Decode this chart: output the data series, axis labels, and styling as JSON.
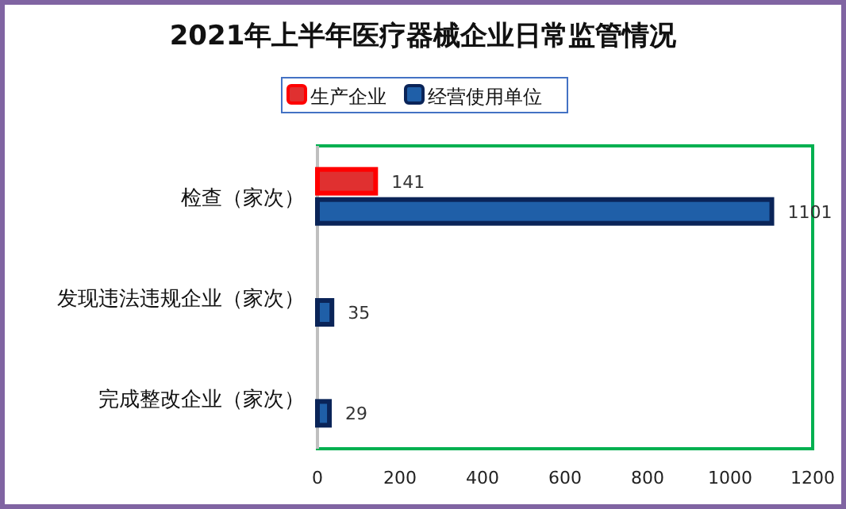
{
  "chart_data": {
    "type": "bar",
    "orientation": "horizontal",
    "title": "2021年上半年医疗器械企业日常监管情况",
    "categories": [
      "检查（家次）",
      "发现违法违规企业（家次）",
      "完成整改企业（家次）"
    ],
    "series": [
      {
        "name": "生产企业",
        "color": "#e03030",
        "values": [
          141,
          null,
          null
        ]
      },
      {
        "name": "经营使用单位",
        "color": "#1f5fa8",
        "values": [
          1101,
          35,
          29
        ]
      }
    ],
    "xlim": [
      0,
      1200
    ],
    "xticks": [
      0,
      200,
      400,
      600,
      800,
      1000,
      1200
    ],
    "data_labels": true,
    "legend": "top",
    "grid": false
  }
}
